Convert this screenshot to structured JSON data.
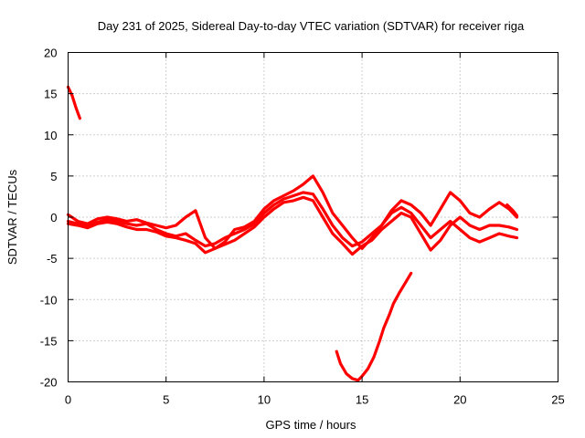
{
  "chart_data": {
    "type": "line",
    "title": "Day 231 of 2025, Sidereal Day-to-day VTEC variation (SDTVAR) for receiver riga",
    "xlabel": "GPS time / hours",
    "ylabel": "SDTVAR / TECUs",
    "xlim": [
      0,
      25
    ],
    "ylim": [
      -20,
      20
    ],
    "xticks": [
      0,
      5,
      10,
      15,
      20,
      25
    ],
    "yticks": [
      -20,
      -15,
      -10,
      -5,
      0,
      5,
      10,
      15,
      20
    ],
    "grid": true,
    "series_color": "#ff0000",
    "series": [
      {
        "x": [
          0.0,
          0.2,
          0.4,
          0.6
        ],
        "y": [
          15.8,
          14.8,
          13.3,
          12.0
        ]
      },
      {
        "x": [
          0,
          0.5,
          1,
          1.5,
          2,
          2.5,
          3,
          3.5,
          4,
          4.5,
          5,
          5.5,
          6,
          6.5,
          7,
          7.5,
          8,
          8.5,
          9,
          9.5,
          10,
          10.5,
          11,
          11.5,
          12,
          12.5,
          13,
          13.5,
          14,
          14.5,
          15,
          15.5,
          16,
          16.5,
          17,
          17.5,
          18,
          18.5,
          19,
          19.5,
          20,
          20.5,
          21,
          21.5,
          22,
          22.5,
          22.9
        ],
        "y": [
          -0.5,
          -0.8,
          -1.0,
          -0.6,
          -0.3,
          -0.5,
          -0.8,
          -1.0,
          -0.8,
          -1.5,
          -2.0,
          -2.3,
          -2.0,
          -2.8,
          -3.5,
          -3.2,
          -2.5,
          -2.0,
          -1.5,
          -0.8,
          0.5,
          1.5,
          2.2,
          2.6,
          3.0,
          2.8,
          1.0,
          -1.0,
          -2.5,
          -3.5,
          -3.0,
          -2.0,
          -1.0,
          0.5,
          1.2,
          0.5,
          -1.0,
          -2.5,
          -1.5,
          -0.5,
          -1.5,
          -2.5,
          -3.0,
          -2.5,
          -2.0,
          -2.3,
          -2.5
        ]
      },
      {
        "x": [
          0,
          0.5,
          1,
          1.5,
          2,
          2.5,
          3,
          3.5,
          4,
          4.5,
          5,
          5.5,
          6,
          6.5,
          7,
          7.5,
          8,
          8.5,
          9,
          9.5,
          10,
          10.5,
          11,
          11.5,
          12,
          12.5,
          13,
          13.5,
          14,
          14.5,
          15,
          15.5,
          16,
          16.5,
          17,
          17.5,
          18,
          18.5,
          19,
          19.5,
          20,
          20.5,
          21,
          21.5,
          22,
          22.5,
          22.9
        ],
        "y": [
          0.3,
          -0.5,
          -0.8,
          -0.2,
          0.0,
          -0.2,
          -0.5,
          -0.3,
          -0.7,
          -1.0,
          -1.3,
          -1.0,
          0.0,
          0.8,
          -2.5,
          -3.8,
          -3.0,
          -1.5,
          -1.2,
          -0.5,
          1.0,
          2.0,
          2.6,
          3.2,
          4.0,
          5.0,
          3.0,
          0.5,
          -1.0,
          -2.5,
          -3.8,
          -2.5,
          -1.0,
          0.8,
          2.0,
          1.5,
          0.5,
          -1.0,
          1.0,
          3.0,
          2.0,
          0.5,
          0.0,
          1.0,
          1.8,
          1.0,
          0.0
        ]
      },
      {
        "x": [
          0,
          0.5,
          1,
          1.5,
          2,
          2.5,
          3,
          3.5,
          4,
          4.5,
          5,
          5.5,
          6,
          6.5,
          7,
          7.5,
          8,
          8.5,
          9,
          9.5,
          10,
          10.5,
          11,
          11.5,
          12,
          12.5,
          13,
          13.5,
          14,
          14.5,
          15,
          15.5,
          16,
          16.5,
          17,
          17.5,
          18,
          18.5,
          19,
          19.5,
          20,
          20.5,
          21,
          21.5,
          22,
          22.5,
          22.9
        ],
        "y": [
          -0.8,
          -1.0,
          -1.3,
          -0.8,
          -0.6,
          -0.8,
          -1.2,
          -1.5,
          -1.5,
          -1.8,
          -2.3,
          -2.5,
          -2.8,
          -3.2,
          -4.3,
          -3.8,
          -3.3,
          -2.8,
          -2.0,
          -1.2,
          0.0,
          1.0,
          1.8,
          2.0,
          2.4,
          2.0,
          0.0,
          -2.0,
          -3.2,
          -4.5,
          -3.5,
          -2.8,
          -1.5,
          -0.5,
          0.5,
          0.0,
          -2.0,
          -4.0,
          -2.8,
          -1.0,
          0.0,
          -1.0,
          -1.5,
          -1.0,
          -1.0,
          -1.2,
          -1.5
        ]
      },
      {
        "x": [
          13.7,
          13.9,
          14.2,
          14.5,
          14.8,
          15.0,
          15.3,
          15.6,
          15.9,
          16.1,
          16.4,
          16.6,
          16.9,
          17.2,
          17.5
        ],
        "y": [
          -16.3,
          -17.8,
          -19.0,
          -19.6,
          -19.8,
          -19.3,
          -18.4,
          -17.0,
          -15.0,
          -13.5,
          -11.8,
          -10.5,
          -9.2,
          -8.0,
          -6.8
        ]
      },
      {
        "x": [
          22.4,
          22.7,
          22.9
        ],
        "y": [
          1.5,
          0.8,
          0.2
        ]
      }
    ]
  }
}
